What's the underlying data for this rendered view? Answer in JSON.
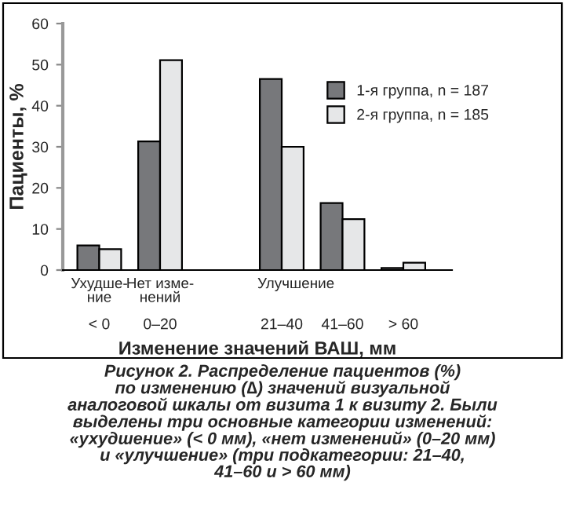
{
  "chart_data": {
    "type": "bar",
    "ylabel": "Пациенты, %",
    "xlabel": "Изменение значений ВАШ, мм",
    "categories": [
      "< 0",
      "0–20",
      null,
      "21–40",
      "41–60",
      "> 60"
    ],
    "series": [
      {
        "name": "1-я группа, n = 187",
        "color": "#77787b",
        "values": [
          6.0,
          31.3,
          null,
          46.5,
          16.3,
          0.5
        ]
      },
      {
        "name": "2-я группа, n = 185",
        "color": "#e6e7e8",
        "values": [
          5.1,
          51.1,
          null,
          30.0,
          12.4,
          1.8
        ]
      }
    ],
    "ylim": [
      0,
      60
    ],
    "yticks": [
      0,
      10,
      20,
      30,
      40,
      50,
      60
    ],
    "grid": false,
    "legend": "right",
    "annotations": [
      "Ухудше-\nние",
      "Нет изме-\nнений",
      "Улучшение",
      "Рисунок 2. Распределение пациентов (%)\nпо изменению (∆) значений визуальной\nаналоговой шкалы от визита 1 к визиту 2. Были\nвыделены три основные категории изменений:\n«ухудшение» (< 0 мм), «нет изменений» (0–20 мм)\nи «улучшение» (три подкатегории: 21–40,\n41–60 и > 60 мм)"
    ]
  }
}
